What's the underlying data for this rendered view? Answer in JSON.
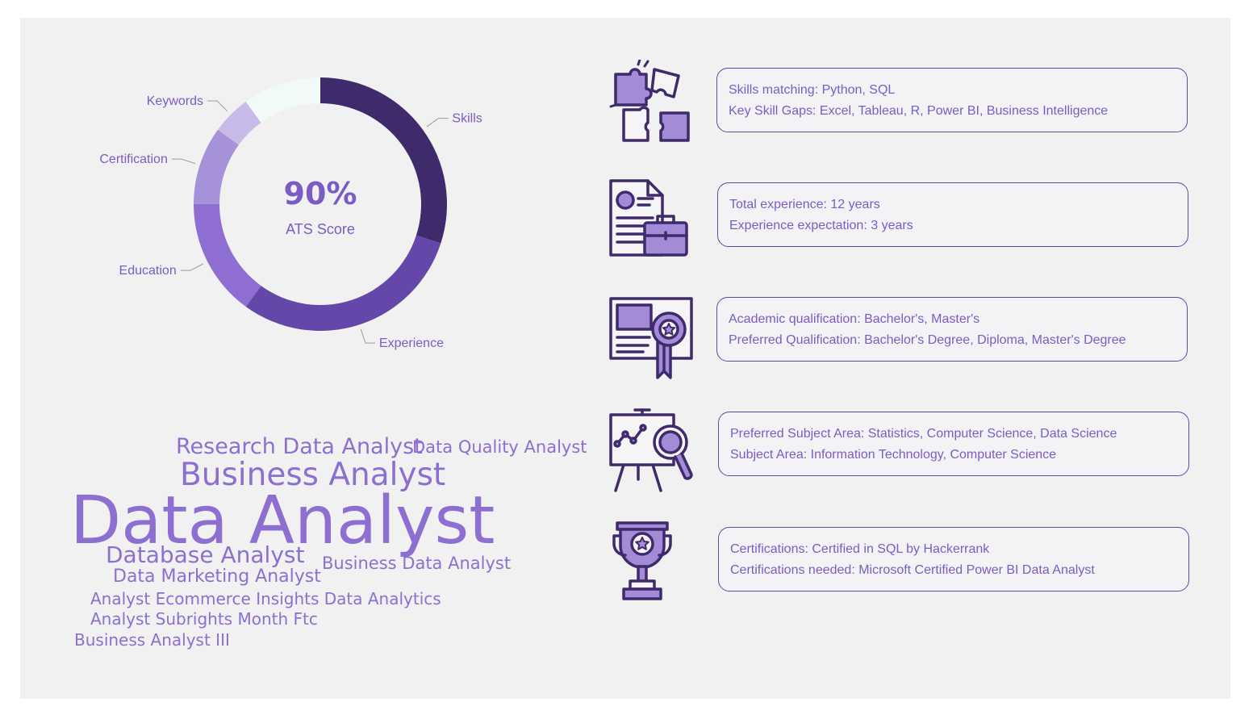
{
  "ats": {
    "score": "90%",
    "label": "ATS Score"
  },
  "chart_data": {
    "type": "pie",
    "variant": "donut",
    "categories": [
      "Skills",
      "Experience",
      "Education",
      "Certification",
      "Keywords",
      ""
    ],
    "values": [
      30,
      30,
      15,
      10,
      5,
      10
    ],
    "colors": [
      "#3f2b6b",
      "#6547aa",
      "#8e6ed0",
      "#a692d9",
      "#c9bbe9",
      "#f1faf7"
    ],
    "title": ""
  },
  "word_cloud": [
    {
      "text": "Research Data Analyst",
      "size": 27
    },
    {
      "text": "Data Quality Analyst",
      "size": 21
    },
    {
      "text": "Business Analyst",
      "size": 39
    },
    {
      "text": "Data Analyst",
      "size": 82
    },
    {
      "text": "Database Analyst",
      "size": 28
    },
    {
      "text": "Business Data Analyst",
      "size": 21
    },
    {
      "text": "Data Marketing Analyst",
      "size": 22
    },
    {
      "text": "Analyst Ecommerce Insights Data Analytics",
      "size": 20
    },
    {
      "text": "Analyst Subrights Month Ftc",
      "size": 20
    },
    {
      "text": "Business Analyst III",
      "size": 20
    }
  ],
  "cards": [
    {
      "icon": "puzzle-icon",
      "line1": "Skills matching: Python, SQL",
      "line2": "Key Skill Gaps: Excel, Tableau, R, Power BI, Business Intelligence"
    },
    {
      "icon": "resume-briefcase-icon",
      "line1": "Total experience: 12 years",
      "line2": "Experience expectation: 3 years"
    },
    {
      "icon": "diploma-icon",
      "line1": "Academic qualification: Bachelor's, Master's",
      "line2": "Preferred Qualification: Bachelor's Degree, Diploma, Master's Degree"
    },
    {
      "icon": "analytics-board-icon",
      "line1": "Preferred Subject Area: Statistics, Computer Science, Data Science",
      "line2": "Subject Area: Information Technology, Computer Science"
    },
    {
      "icon": "trophy-icon",
      "line1": "Certifications: Certified in SQL by Hackerrank",
      "line2": "Certifications needed: Microsoft Certified Power BI Data Analyst"
    }
  ],
  "colors": {
    "accent": "#7b5cc4",
    "dark": "#3f2b6b",
    "card_border": "#5d4aa3",
    "background": "#f1f1f1"
  }
}
